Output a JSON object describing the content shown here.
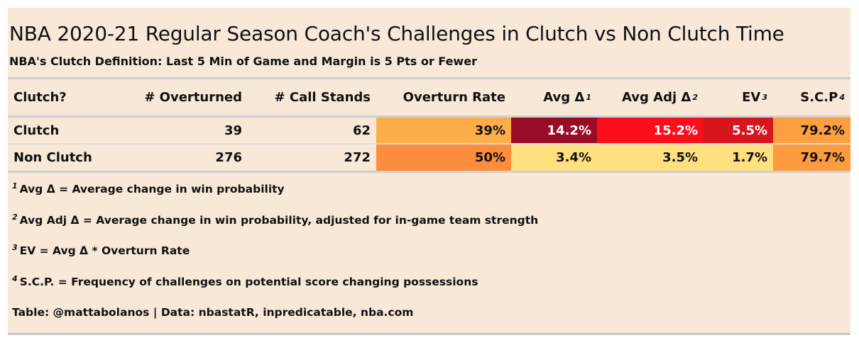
{
  "title": "NBA 2020-21 Regular Season Coach's Challenges in Clutch vs Non Clutch Time",
  "subtitle": "NBA's Clutch Definition: Last 5 Min of Game and Margin is 5 Pts or Fewer",
  "chart_data": {
    "type": "table",
    "columns": [
      {
        "label": "Clutch?",
        "sup": ""
      },
      {
        "label": "# Overturned",
        "sup": ""
      },
      {
        "label": "# Call Stands",
        "sup": ""
      },
      {
        "label": "Overturn Rate",
        "sup": ""
      },
      {
        "label": "Avg Δ",
        "sup": "1"
      },
      {
        "label": "Avg Adj Δ",
        "sup": "2"
      },
      {
        "label": "EV",
        "sup": "3"
      },
      {
        "label": "S.C.P",
        "sup": "4"
      }
    ],
    "rows": [
      {
        "cells": [
          "Clutch",
          "39",
          "62",
          "39%",
          "14.2%",
          "15.2%",
          "5.5%",
          "79.2%"
        ]
      },
      {
        "cells": [
          "Non Clutch",
          "276",
          "272",
          "50%",
          "3.4%",
          "3.5%",
          "1.7%",
          "79.7%"
        ]
      }
    ],
    "cell_colors": [
      [
        null,
        null,
        null,
        "#fdae4b",
        "#980c27",
        "#fb0d1c",
        "#d7151d",
        "#fd9f40"
      ],
      [
        null,
        null,
        null,
        "#fd8c3c",
        "#fee080",
        "#fee080",
        "#fee080",
        "#fd9b3f"
      ]
    ],
    "cell_text_colors": [
      [
        null,
        null,
        null,
        "#111111",
        "#ffffff",
        "#ffffff",
        "#ffffff",
        "#111111"
      ],
      [
        null,
        null,
        null,
        "#111111",
        "#111111",
        "#111111",
        "#111111",
        "#111111"
      ]
    ]
  },
  "footnotes": [
    {
      "sup": "1",
      "text": "Avg Δ = Average change in win probability"
    },
    {
      "sup": "2",
      "text": "Avg Adj Δ = Average change in win probability, adjusted for in-game team strength"
    },
    {
      "sup": "3",
      "text": "EV = Avg Δ * Overturn Rate"
    },
    {
      "sup": "4",
      "text": "S.C.P. = Frequency of challenges on potential score changing possessions"
    }
  ],
  "source": "Table: @mattabolanos | Data: nbastatR, inpredicatable, nba.com",
  "colors": {
    "background": "#f8e8d8",
    "rule": "#cfcfcf"
  }
}
